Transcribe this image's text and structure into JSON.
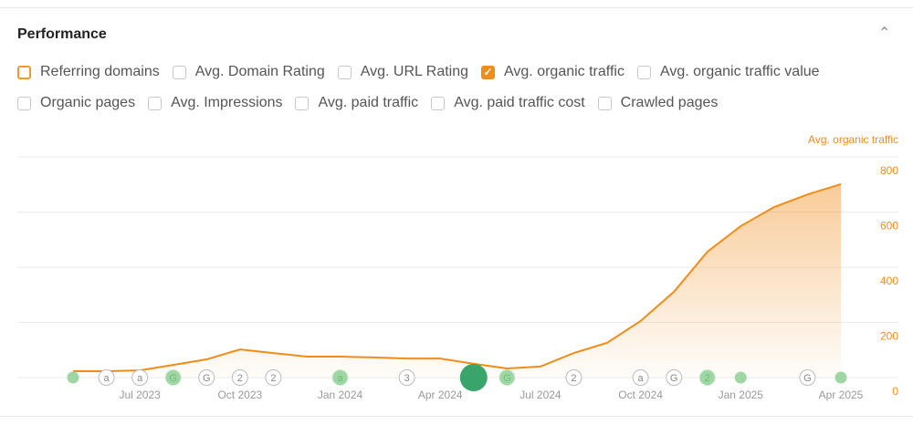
{
  "header": {
    "title": "Performance",
    "collapse_icon": "chevron-up-icon"
  },
  "metrics": [
    [
      {
        "label": "Referring domains",
        "state": "highlight"
      },
      {
        "label": "Avg. Domain Rating",
        "state": "off"
      },
      {
        "label": "Avg. URL Rating",
        "state": "off"
      },
      {
        "label": "Avg. organic traffic",
        "state": "checked"
      },
      {
        "label": "Avg. organic traffic value",
        "state": "off"
      }
    ],
    [
      {
        "label": "Organic pages",
        "state": "off"
      },
      {
        "label": "Avg. Impressions",
        "state": "off"
      },
      {
        "label": "Avg. paid traffic",
        "state": "off"
      },
      {
        "label": "Avg. paid traffic cost",
        "state": "off"
      },
      {
        "label": "Crawled pages",
        "state": "off"
      }
    ]
  ],
  "colors": {
    "line": "#f08c1a",
    "grid": "#ebebeb",
    "event_green": "#9fd7a4",
    "big_marker": "#3aa56b"
  },
  "chart_data": {
    "type": "area",
    "series": [
      {
        "name": "Avg. organic traffic",
        "x": [
          "May 2023",
          "Jun 2023",
          "Jul 2023",
          "Aug 2023",
          "Sep 2023",
          "Oct 2023",
          "Nov 2023",
          "Dec 2023",
          "Jan 2024",
          "Feb 2024",
          "Mar 2024",
          "Apr 2024",
          "May 2024",
          "Jun 2024",
          "Jul 2024",
          "Aug 2024",
          "Sep 2024",
          "Oct 2024",
          "Nov 2024",
          "Dec 2024",
          "Jan 2025",
          "Feb 2025",
          "Mar 2025",
          "Apr 2025"
        ],
        "values": [
          23,
          23,
          26,
          46,
          66,
          102,
          89,
          76,
          76,
          73,
          69,
          69,
          50,
          33,
          40,
          89,
          126,
          205,
          311,
          456,
          549,
          618,
          664,
          701
        ]
      }
    ],
    "y_axis_label": "Avg. organic traffic",
    "yticks": [
      0,
      200,
      400,
      600,
      800
    ],
    "ylim": [
      0,
      800
    ],
    "xticks": [
      "Jul 2023",
      "Oct 2023",
      "Jan 2024",
      "Apr 2024",
      "Jul 2024",
      "Oct 2024",
      "Jan 2025",
      "Apr 2025"
    ],
    "grid": true,
    "y_axis_side": "right",
    "events": [
      {
        "month": "May 2023",
        "label": "",
        "style": "green-dot"
      },
      {
        "month": "Jun 2023",
        "label": "a",
        "style": "outline"
      },
      {
        "month": "Jul 2023",
        "label": "a",
        "style": "outline"
      },
      {
        "month": "Aug 2023",
        "label": "G",
        "style": "green"
      },
      {
        "month": "Sep 2023",
        "label": "G",
        "style": "outline"
      },
      {
        "month": "Oct 2023",
        "label": "2",
        "style": "outline"
      },
      {
        "month": "Nov 2023",
        "label": "2",
        "style": "outline"
      },
      {
        "month": "Jan 2024",
        "label": "a",
        "style": "green"
      },
      {
        "month": "Mar 2024",
        "label": "3",
        "style": "outline"
      },
      {
        "month": "May 2024",
        "label": "",
        "style": "big"
      },
      {
        "month": "Jun 2024",
        "label": "G",
        "style": "green"
      },
      {
        "month": "Aug 2024",
        "label": "2",
        "style": "outline"
      },
      {
        "month": "Oct 2024",
        "label": "a",
        "style": "outline"
      },
      {
        "month": "Nov 2024",
        "label": "G",
        "style": "outline"
      },
      {
        "month": "Dec 2024",
        "label": "2",
        "style": "green"
      },
      {
        "month": "Jan 2025",
        "label": "",
        "style": "green-dot"
      },
      {
        "month": "Mar 2025",
        "label": "G",
        "style": "outline"
      },
      {
        "month": "Apr 2025",
        "label": "",
        "style": "green-dot"
      }
    ]
  }
}
